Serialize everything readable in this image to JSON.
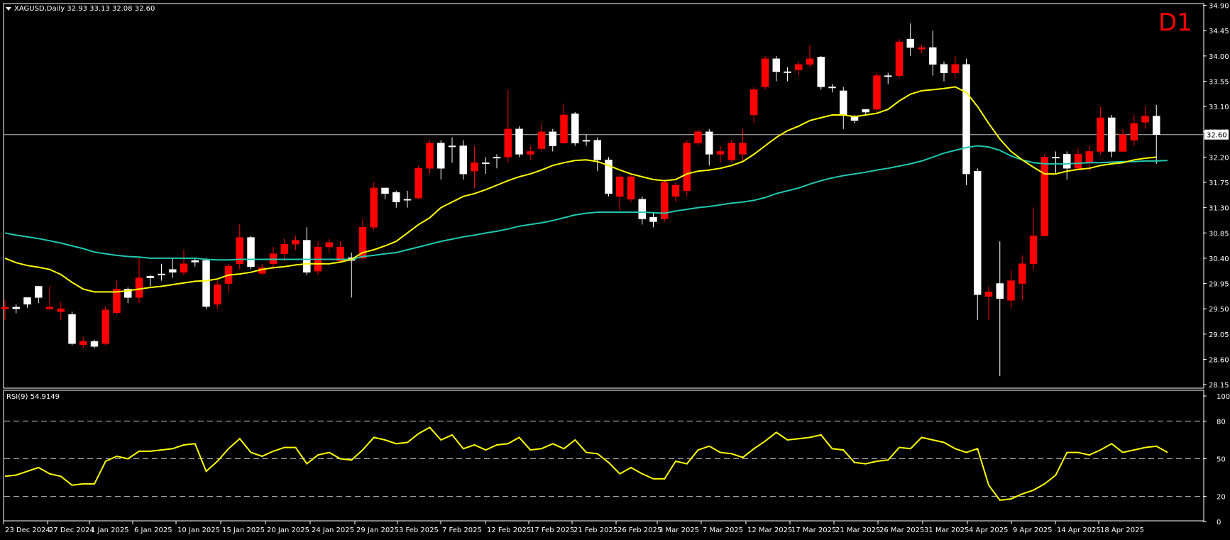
{
  "header": {
    "symbol_line": "XAGUSD,Daily  32.93 33.13 32.08 32.60",
    "timeframe": "D1"
  },
  "rsi_header": "RSI(9) 54.9149",
  "colors": {
    "bull_candle": "#ffffff",
    "bear_candle": "#ff0000",
    "ma_fast": "#ffff00",
    "ma_slow": "#20c8b0",
    "rsi_line": "#ffff00",
    "timeframe_label": "#ff0000",
    "grid_text": "#ffffff"
  },
  "chart_data": [
    {
      "type": "candlestick",
      "title": "XAGUSD,Daily",
      "y_ticks": [
        "34.90",
        "34.45",
        "34.00",
        "33.55",
        "33.10",
        "32.65",
        "32.20",
        "31.75",
        "31.30",
        "30.85",
        "30.40",
        "29.95",
        "29.50",
        "29.05",
        "28.60",
        "28.15"
      ],
      "ylim": [
        28.1,
        34.92
      ],
      "current_price": "32.60",
      "x_ticks": [
        "23 Dec 2024",
        "27 Dec 2024",
        "1 Jan 2025",
        "6 Jan 2025",
        "10 Jan 2025",
        "15 Jan 2025",
        "20 Jan 2025",
        "24 Jan 2025",
        "29 Jan 2025",
        "3 Feb 2025",
        "7 Feb 2025",
        "12 Feb 2025",
        "17 Feb 2025",
        "21 Feb 2025",
        "26 Feb 2025",
        "3 Mar 2025",
        "7 Mar 2025",
        "12 Mar 2025",
        "17 Mar 2025",
        "21 Mar 2025",
        "26 Mar 2025",
        "31 Mar 2025",
        "4 Apr 2025",
        "9 Apr 2025",
        "14 Apr 2025",
        "18 Apr 2025"
      ],
      "candles": [
        [
          29.53,
          29.65,
          29.3,
          29.5
        ],
        [
          29.5,
          29.58,
          29.42,
          29.53
        ],
        [
          29.58,
          29.7,
          29.52,
          29.7
        ],
        [
          29.7,
          29.9,
          29.6,
          29.9
        ],
        [
          29.53,
          29.9,
          29.48,
          29.5
        ],
        [
          29.5,
          29.62,
          29.3,
          29.45
        ],
        [
          28.88,
          29.45,
          28.85,
          29.4
        ],
        [
          28.92,
          29.0,
          28.8,
          28.86
        ],
        [
          28.83,
          28.95,
          28.8,
          28.92
        ],
        [
          29.48,
          29.55,
          28.85,
          28.88
        ],
        [
          29.85,
          30.0,
          29.4,
          29.43
        ],
        [
          29.7,
          29.88,
          29.6,
          29.85
        ],
        [
          30.05,
          30.4,
          29.6,
          29.7
        ],
        [
          30.05,
          30.1,
          29.9,
          30.08
        ],
        [
          30.1,
          30.3,
          30.0,
          30.12
        ],
        [
          30.15,
          30.4,
          30.05,
          30.2
        ],
        [
          30.3,
          30.55,
          30.1,
          30.15
        ],
        [
          30.33,
          30.4,
          30.25,
          30.36
        ],
        [
          29.54,
          30.4,
          29.5,
          30.36
        ],
        [
          29.93,
          30.0,
          29.5,
          29.58
        ],
        [
          30.26,
          30.3,
          29.8,
          29.95
        ],
        [
          30.77,
          31.0,
          30.2,
          30.3
        ],
        [
          30.25,
          30.8,
          30.2,
          30.77
        ],
        [
          30.23,
          30.3,
          30.1,
          30.13
        ],
        [
          30.48,
          30.6,
          30.2,
          30.3
        ],
        [
          30.65,
          30.75,
          30.35,
          30.48
        ],
        [
          30.72,
          30.8,
          30.55,
          30.65
        ],
        [
          30.15,
          30.95,
          30.1,
          30.72
        ],
        [
          30.6,
          30.7,
          30.1,
          30.17
        ],
        [
          30.68,
          30.75,
          30.5,
          30.6
        ],
        [
          30.6,
          30.7,
          30.35,
          30.35
        ],
        [
          30.36,
          30.5,
          29.7,
          30.41
        ],
        [
          30.95,
          31.1,
          30.35,
          30.4
        ],
        [
          31.65,
          31.75,
          30.9,
          30.95
        ],
        [
          31.55,
          31.65,
          31.45,
          31.65
        ],
        [
          31.4,
          31.6,
          31.3,
          31.57
        ],
        [
          31.45,
          31.6,
          31.3,
          31.45
        ],
        [
          32.0,
          32.05,
          31.45,
          31.47
        ],
        [
          32.45,
          32.5,
          31.9,
          32.0
        ],
        [
          32.0,
          32.5,
          31.8,
          32.45
        ],
        [
          32.4,
          32.55,
          32.1,
          32.4
        ],
        [
          31.9,
          32.5,
          31.8,
          32.4
        ],
        [
          32.1,
          32.4,
          31.65,
          31.95
        ],
        [
          32.1,
          32.2,
          31.9,
          32.1
        ],
        [
          32.2,
          32.25,
          32.0,
          32.2
        ],
        [
          32.7,
          33.4,
          32.1,
          32.2
        ],
        [
          32.25,
          32.75,
          32.2,
          32.7
        ],
        [
          32.3,
          32.4,
          32.15,
          32.25
        ],
        [
          32.65,
          32.8,
          32.3,
          32.35
        ],
        [
          32.4,
          32.7,
          32.3,
          32.65
        ],
        [
          32.95,
          33.15,
          32.45,
          32.45
        ],
        [
          32.45,
          33.0,
          32.4,
          32.97
        ],
        [
          32.5,
          32.6,
          32.4,
          32.5
        ],
        [
          32.15,
          32.55,
          31.95,
          32.5
        ],
        [
          31.55,
          32.2,
          31.5,
          32.15
        ],
        [
          31.85,
          31.9,
          31.25,
          31.5
        ],
        [
          31.85,
          31.9,
          31.4,
          31.45
        ],
        [
          31.1,
          31.5,
          31.0,
          31.45
        ],
        [
          31.05,
          31.2,
          30.95,
          31.13
        ],
        [
          31.75,
          31.8,
          31.05,
          31.1
        ],
        [
          31.7,
          31.75,
          31.4,
          31.5
        ],
        [
          32.45,
          32.5,
          31.5,
          31.6
        ],
        [
          32.65,
          32.7,
          32.4,
          32.45
        ],
        [
          32.25,
          32.7,
          32.05,
          32.65
        ],
        [
          32.3,
          32.4,
          32.1,
          32.25
        ],
        [
          32.45,
          32.5,
          32.1,
          32.15
        ],
        [
          32.45,
          32.7,
          32.1,
          32.25
        ],
        [
          33.4,
          33.45,
          32.8,
          32.95
        ],
        [
          33.95,
          34.0,
          33.4,
          33.45
        ],
        [
          33.72,
          34.0,
          33.55,
          33.95
        ],
        [
          33.72,
          33.8,
          33.55,
          33.72
        ],
        [
          33.85,
          33.9,
          33.65,
          33.75
        ],
        [
          33.95,
          34.2,
          33.8,
          33.85
        ],
        [
          33.45,
          34.0,
          33.4,
          33.98
        ],
        [
          33.43,
          33.5,
          33.35,
          33.45
        ],
        [
          32.95,
          33.45,
          32.7,
          33.38
        ],
        [
          32.85,
          32.95,
          32.8,
          32.93
        ],
        [
          33.0,
          33.05,
          32.95,
          33.05
        ],
        [
          33.65,
          33.7,
          33.0,
          33.05
        ],
        [
          33.65,
          33.7,
          33.5,
          33.65
        ],
        [
          34.25,
          34.3,
          33.6,
          33.65
        ],
        [
          34.15,
          34.58,
          34.0,
          34.3
        ],
        [
          34.15,
          34.2,
          34.05,
          34.12
        ],
        [
          33.85,
          34.45,
          33.65,
          34.15
        ],
        [
          33.7,
          33.9,
          33.55,
          33.85
        ],
        [
          33.85,
          34.0,
          33.6,
          33.7
        ],
        [
          31.9,
          33.95,
          31.7,
          33.85
        ],
        [
          29.75,
          32.0,
          29.3,
          31.95
        ],
        [
          29.8,
          29.9,
          29.3,
          29.72
        ],
        [
          29.68,
          30.7,
          28.3,
          29.95
        ],
        [
          30.0,
          30.2,
          29.5,
          29.65
        ],
        [
          30.3,
          30.45,
          29.65,
          29.95
        ],
        [
          30.8,
          31.3,
          30.2,
          30.3
        ],
        [
          32.2,
          32.25,
          30.8,
          30.8
        ],
        [
          32.2,
          32.3,
          31.9,
          32.2
        ],
        [
          32.0,
          32.3,
          31.8,
          32.25
        ],
        [
          32.25,
          32.35,
          32.0,
          32.0
        ],
        [
          32.3,
          32.4,
          31.95,
          32.1
        ],
        [
          32.9,
          33.1,
          32.25,
          32.3
        ],
        [
          32.3,
          32.95,
          32.2,
          32.9
        ],
        [
          32.6,
          32.7,
          32.3,
          32.3
        ],
        [
          32.8,
          32.95,
          32.4,
          32.5
        ],
        [
          32.93,
          33.1,
          32.7,
          32.82
        ],
        [
          32.6,
          33.13,
          32.08,
          32.93
        ]
      ],
      "ma_fast": [
        30.4,
        30.32,
        30.27,
        30.24,
        30.2,
        30.11,
        29.97,
        29.85,
        29.8,
        29.8,
        29.8,
        29.82,
        29.85,
        29.88,
        29.9,
        29.93,
        29.96,
        29.99,
        30.0,
        30.03,
        30.1,
        30.12,
        30.15,
        30.2,
        30.23,
        30.25,
        30.28,
        30.3,
        30.3,
        30.3,
        30.33,
        30.38,
        30.5,
        30.55,
        30.62,
        30.7,
        30.85,
        31.0,
        31.12,
        31.3,
        31.4,
        31.5,
        31.55,
        31.62,
        31.7,
        31.78,
        31.85,
        31.9,
        31.97,
        32.05,
        32.1,
        32.14,
        32.15,
        32.12,
        32.05,
        31.97,
        31.9,
        31.85,
        31.8,
        31.78,
        31.8,
        31.9,
        31.95,
        31.97,
        32.0,
        32.05,
        32.12,
        32.25,
        32.4,
        32.55,
        32.67,
        32.75,
        32.85,
        32.9,
        32.95,
        32.95,
        32.92,
        32.95,
        32.98,
        33.05,
        33.2,
        33.32,
        33.38,
        33.4,
        33.42,
        33.45,
        33.35,
        33.1,
        32.8,
        32.52,
        32.3,
        32.15,
        32.02,
        31.9,
        31.9,
        31.95,
        31.98,
        32.0,
        32.05,
        32.08,
        32.1,
        32.15,
        32.18,
        32.2
      ],
      "ma_slow": [
        30.85,
        30.81,
        30.78,
        30.75,
        30.71,
        30.67,
        30.62,
        30.57,
        30.51,
        30.48,
        30.45,
        30.43,
        30.42,
        30.4,
        30.4,
        30.4,
        30.4,
        30.4,
        30.38,
        30.37,
        30.37,
        30.38,
        30.38,
        30.38,
        30.38,
        30.38,
        30.38,
        30.38,
        30.38,
        30.38,
        30.38,
        30.38,
        30.43,
        30.45,
        30.48,
        30.5,
        30.55,
        30.6,
        30.65,
        30.7,
        30.74,
        30.78,
        30.81,
        30.85,
        30.88,
        30.92,
        30.97,
        31.0,
        31.03,
        31.07,
        31.12,
        31.17,
        31.2,
        31.22,
        31.22,
        31.22,
        31.22,
        31.22,
        31.21,
        31.2,
        31.24,
        31.27,
        31.3,
        31.32,
        31.35,
        31.38,
        31.4,
        31.43,
        31.48,
        31.55,
        31.6,
        31.65,
        31.72,
        31.78,
        31.83,
        31.87,
        31.9,
        31.93,
        31.97,
        32.0,
        32.04,
        32.08,
        32.13,
        32.2,
        32.27,
        32.32,
        32.37,
        32.4,
        32.38,
        32.32,
        32.22,
        32.15,
        32.1,
        32.08,
        32.08,
        32.08,
        32.09,
        32.1,
        32.1,
        32.11,
        32.12,
        32.12,
        32.13,
        32.13,
        32.14
      ]
    },
    {
      "type": "line",
      "title": "RSI(9) 54.9149",
      "y_ticks": [
        "100",
        "80",
        "50",
        "20",
        "0"
      ],
      "levels": [
        80,
        50,
        20
      ],
      "ylim": [
        0,
        100
      ],
      "values": [
        36,
        37,
        40,
        43,
        38,
        36,
        29,
        30,
        30,
        48,
        52,
        50,
        56,
        56,
        57,
        58,
        61,
        62,
        40,
        48,
        58,
        66,
        55,
        52,
        56,
        59,
        59,
        46,
        53,
        55,
        50,
        49,
        57,
        67,
        65,
        62,
        63,
        70,
        75,
        65,
        69,
        58,
        61,
        57,
        61,
        62,
        67,
        57,
        58,
        62,
        58,
        65,
        55,
        54,
        47,
        38,
        43,
        38,
        34,
        34,
        48,
        46,
        57,
        60,
        55,
        54,
        51,
        58,
        64,
        71,
        65,
        66,
        67,
        69,
        58,
        57,
        47,
        46,
        48,
        49,
        59,
        58,
        67,
        65,
        63,
        58,
        55,
        58,
        29,
        17,
        18,
        22,
        25,
        30,
        37,
        55,
        55,
        53,
        57,
        62,
        55,
        57,
        59,
        60,
        55
      ]
    }
  ]
}
